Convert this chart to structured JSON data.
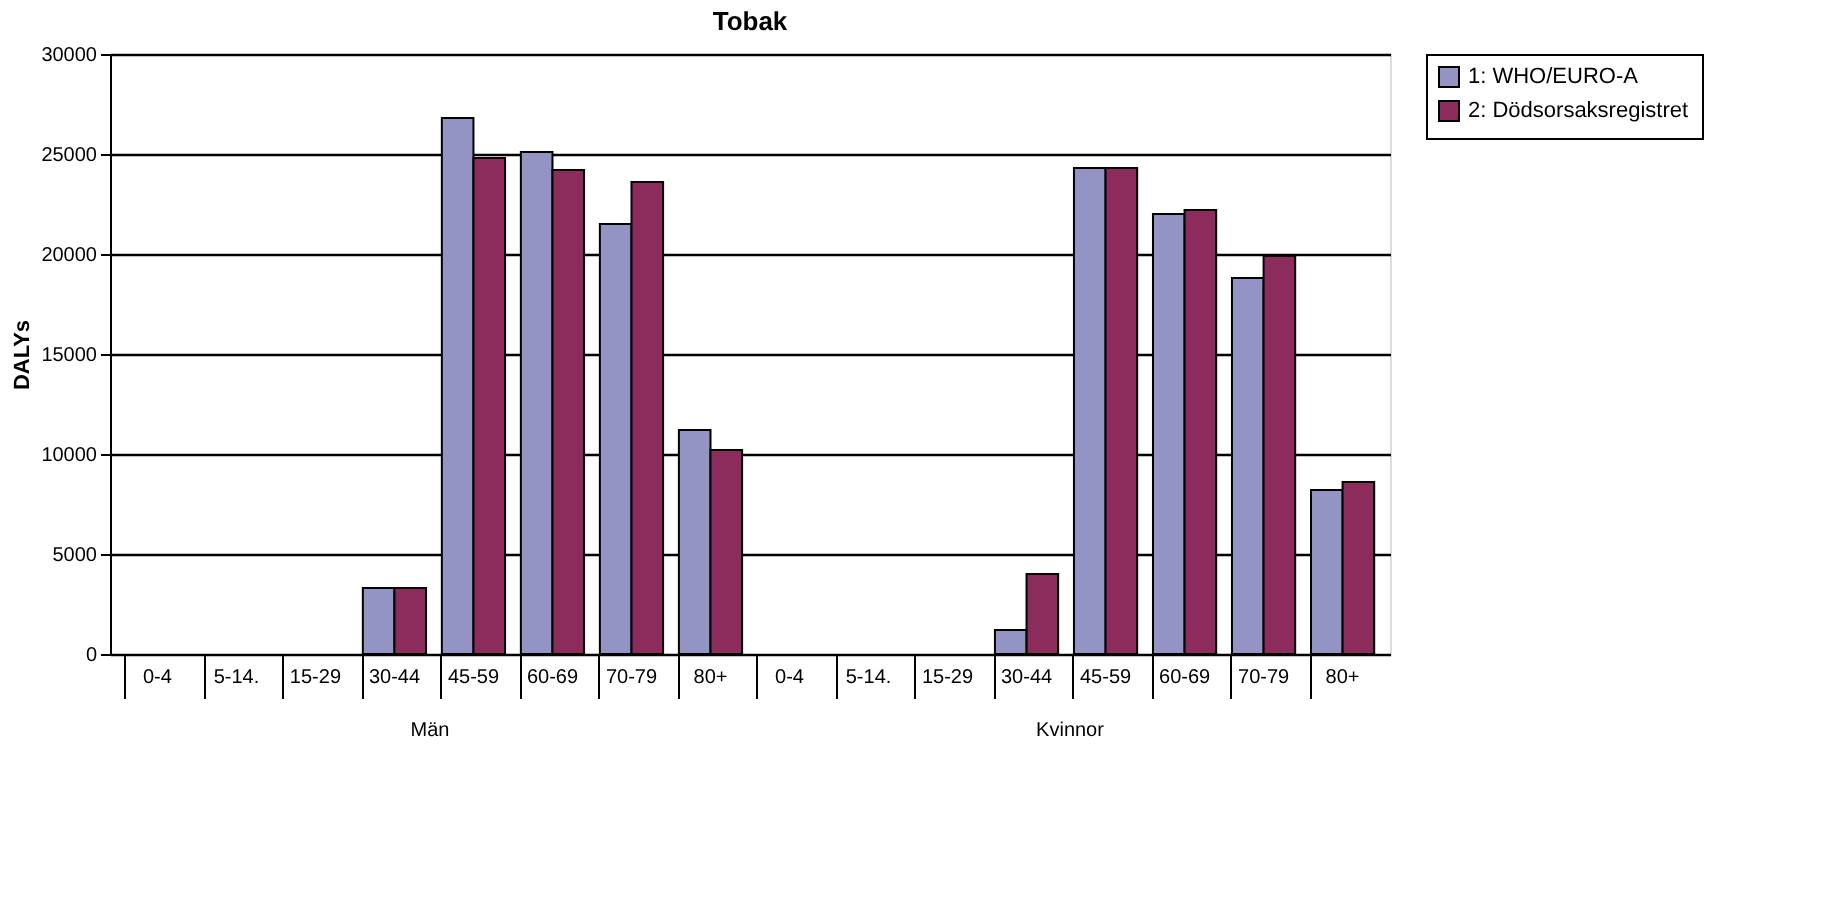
{
  "chart_data": {
    "type": "bar",
    "title": "Tobak",
    "ylabel": "DALYs",
    "categories": [
      "0-4",
      "5-14.",
      "15-29",
      "30-44",
      "45-59",
      "60-69",
      "70-79",
      "80+",
      "0-4",
      "5-14.",
      "15-29",
      "30-44",
      "45-59",
      "60-69",
      "70-79",
      "80+"
    ],
    "series": [
      {
        "name": "1: WHO/EURO-A",
        "color": "#9494c4",
        "values": [
          null,
          null,
          null,
          3300,
          26800,
          25100,
          21500,
          11200,
          null,
          null,
          null,
          1200,
          24300,
          22000,
          18800,
          8200
        ]
      },
      {
        "name": "2: Dödsorsaksregistret",
        "color": "#8c2c5c",
        "values": [
          null,
          null,
          null,
          3300,
          24800,
          24200,
          23600,
          10200,
          null,
          null,
          null,
          4000,
          24300,
          22200,
          19900,
          8600
        ]
      }
    ],
    "annotations": [
      "Män",
      "Kvinnor"
    ],
    "ylim": [
      0,
      30000
    ],
    "yticks": [
      0,
      5000,
      10000,
      15000,
      20000,
      25000,
      30000
    ],
    "grid": "y",
    "legend": "right"
  }
}
